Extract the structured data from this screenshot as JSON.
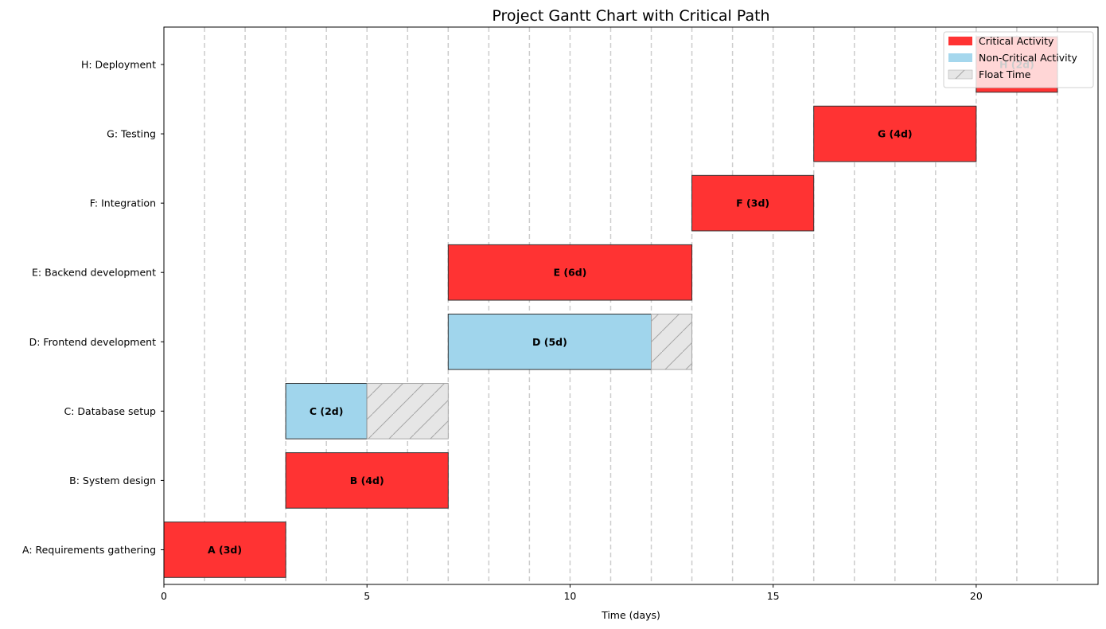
{
  "chart_data": {
    "type": "gantt",
    "title": "Project Gantt Chart with Critical Path",
    "xlabel": "Time (days)",
    "xlim": [
      0,
      23
    ],
    "xticks": [
      0,
      5,
      10,
      15,
      20
    ],
    "vgrid_every": 1,
    "vgrid_to": 22,
    "legend_position": "top-right",
    "colors": {
      "critical": "#ff3333",
      "noncritical": "#a0d5ec",
      "float": "#e6e6e6",
      "float_edge": "#a6a6a6",
      "bar_edge": "#333333",
      "grid": "#cccccc"
    },
    "legend": [
      {
        "key": "critical",
        "label": "Critical Activity"
      },
      {
        "key": "noncritical",
        "label": "Non-Critical Activity"
      },
      {
        "key": "float",
        "label": "Float Time"
      }
    ],
    "tasks": [
      {
        "name": "A: Requirements gathering",
        "label": "A (3d)",
        "start": 0,
        "duration": 3,
        "critical": true,
        "float": 0
      },
      {
        "name": "B: System design",
        "label": "B (4d)",
        "start": 3,
        "duration": 4,
        "critical": true,
        "float": 0
      },
      {
        "name": "C: Database setup",
        "label": "C (2d)",
        "start": 3,
        "duration": 2,
        "critical": false,
        "float": 2
      },
      {
        "name": "D: Frontend development",
        "label": "D (5d)",
        "start": 7,
        "duration": 5,
        "critical": false,
        "float": 1
      },
      {
        "name": "E: Backend development",
        "label": "E (6d)",
        "start": 7,
        "duration": 6,
        "critical": true,
        "float": 0
      },
      {
        "name": "F: Integration",
        "label": "F (3d)",
        "start": 13,
        "duration": 3,
        "critical": true,
        "float": 0
      },
      {
        "name": "G: Testing",
        "label": "G (4d)",
        "start": 16,
        "duration": 4,
        "critical": true,
        "float": 0
      },
      {
        "name": "H: Deployment",
        "label": "H (2d)",
        "start": 20,
        "duration": 2,
        "critical": true,
        "float": 0
      }
    ]
  }
}
